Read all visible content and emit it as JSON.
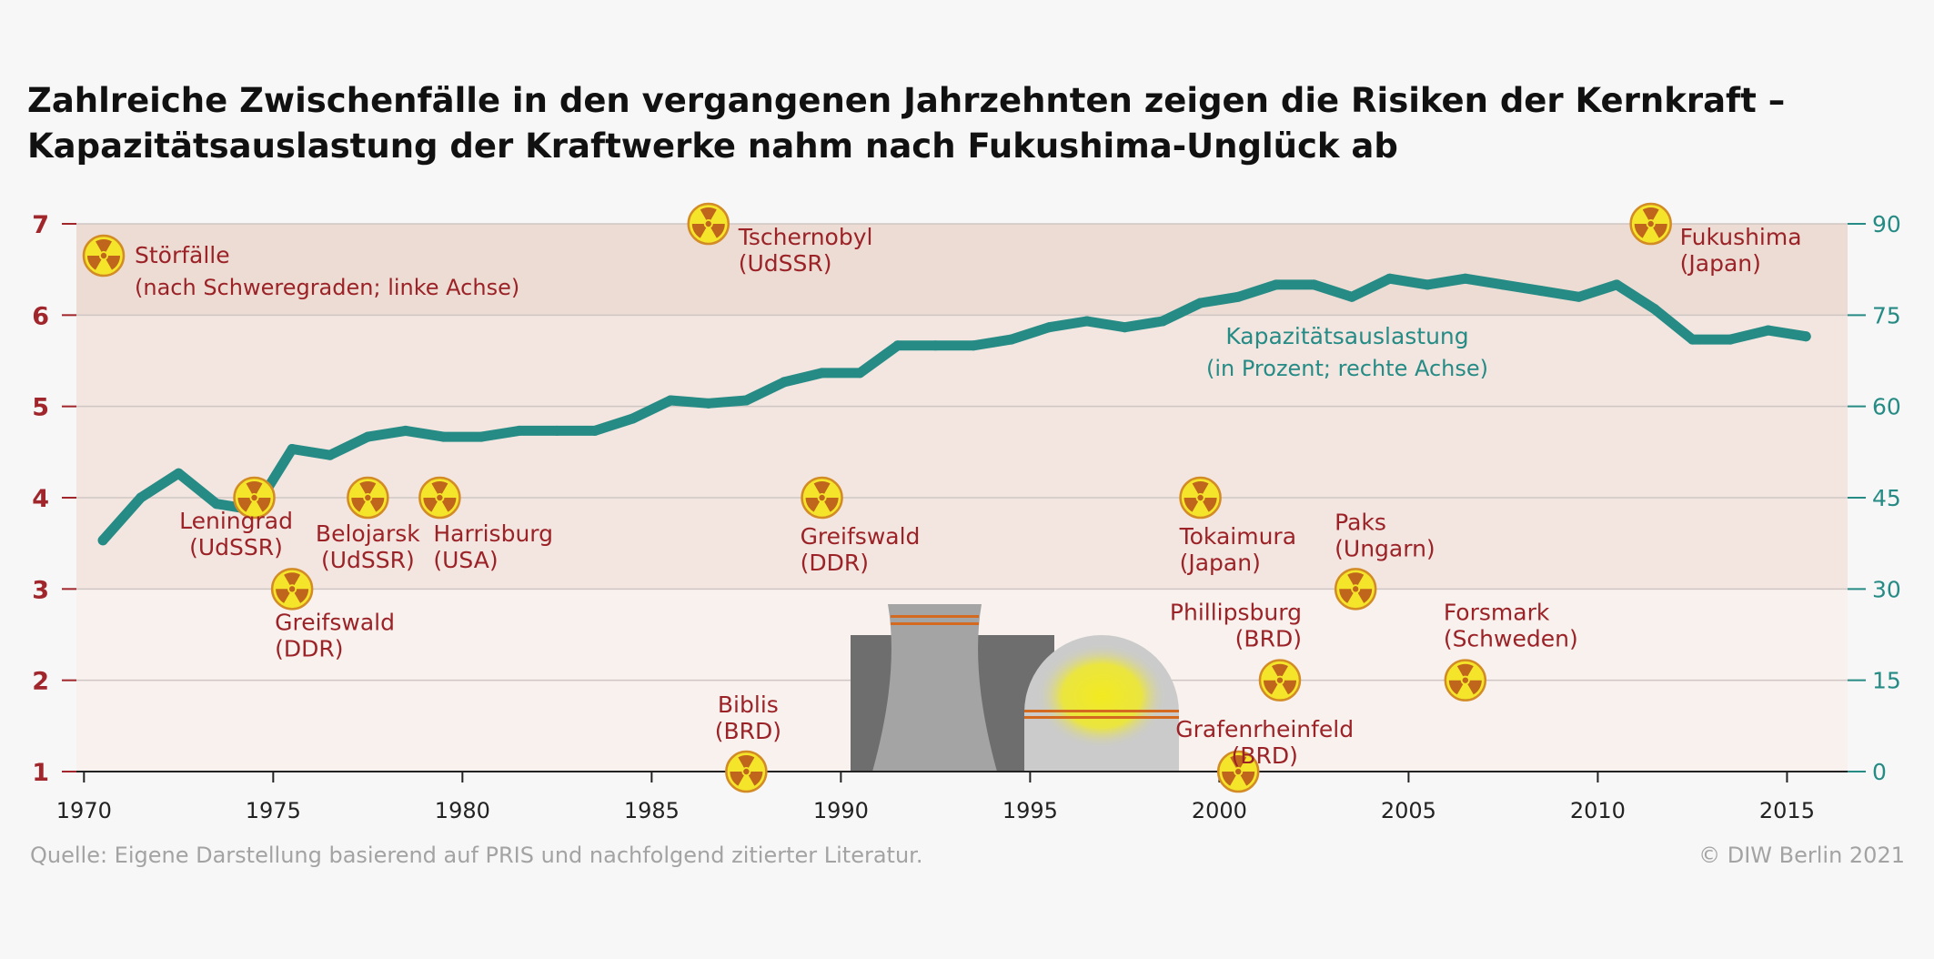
{
  "chart_data": {
    "type": "line",
    "title": "Zahlreiche Zwischenfälle in den vergangenen Jahrzehnten zeigen die Risiken der Kernkraft – Kapazitätsauslastung der Kraftwerke nahm nach Fukushima-Unglück ab",
    "x_ticks": [
      1970,
      1975,
      1980,
      1985,
      1990,
      1995,
      2000,
      2005,
      2010,
      2015
    ],
    "xlim": [
      1969.8,
      2016.6
    ],
    "left_axis": {
      "label": "Störfälle (nach Schweregraden)",
      "ylim": [
        1,
        7
      ],
      "ticks": [
        1,
        2,
        3,
        4,
        5,
        6,
        7
      ]
    },
    "right_axis": {
      "label": "Kapazitätsauslastung (in Prozent)",
      "ylim": [
        0,
        90
      ],
      "ticks": [
        0,
        15,
        30,
        45,
        60,
        75,
        90
      ]
    },
    "bands": [
      {
        "from": 1,
        "to": 3,
        "color": "#f8f1ee"
      },
      {
        "from": 3,
        "to": 6,
        "color": "#f3e6e1"
      },
      {
        "from": 6,
        "to": 7,
        "color": "#ecdcd4"
      }
    ],
    "series": [
      {
        "name": "Kapazitätsauslastung",
        "axis": "right",
        "color": "#268b85",
        "points": [
          [
            1970.5,
            38
          ],
          [
            1971.5,
            45
          ],
          [
            1972.5,
            49
          ],
          [
            1973.5,
            44
          ],
          [
            1974.5,
            43
          ],
          [
            1975.5,
            53
          ],
          [
            1976.5,
            52
          ],
          [
            1977.5,
            55
          ],
          [
            1978.5,
            56
          ],
          [
            1979.5,
            55
          ],
          [
            1980.5,
            55
          ],
          [
            1981.5,
            56
          ],
          [
            1982.5,
            56
          ],
          [
            1983.5,
            56
          ],
          [
            1984.5,
            58
          ],
          [
            1985.5,
            61
          ],
          [
            1986.5,
            60.5
          ],
          [
            1987.5,
            61
          ],
          [
            1988.5,
            64
          ],
          [
            1989.5,
            65.5
          ],
          [
            1990.5,
            65.5
          ],
          [
            1991.5,
            70
          ],
          [
            1992.5,
            70
          ],
          [
            1993.5,
            70
          ],
          [
            1994.5,
            71
          ],
          [
            1995.5,
            73
          ],
          [
            1996.5,
            74
          ],
          [
            1997.5,
            73
          ],
          [
            1998.5,
            74
          ],
          [
            1999.5,
            77
          ],
          [
            2000.5,
            78
          ],
          [
            2001.5,
            80
          ],
          [
            2002.5,
            80
          ],
          [
            2003.5,
            78
          ],
          [
            2004.5,
            81
          ],
          [
            2005.5,
            80
          ],
          [
            2006.5,
            81
          ],
          [
            2007.5,
            80
          ],
          [
            2008.5,
            79
          ],
          [
            2009.5,
            78
          ],
          [
            2010.5,
            80
          ],
          [
            2011.5,
            76
          ],
          [
            2012.5,
            71
          ],
          [
            2013.5,
            71
          ],
          [
            2014.5,
            72.5
          ],
          [
            2015.5,
            71.5
          ]
        ]
      }
    ],
    "incidents": [
      {
        "year": 1974.5,
        "level": 4,
        "label": [
          "Leningrad",
          "(UdSSR)"
        ]
      },
      {
        "year": 1975.5,
        "level": 3,
        "label": [
          "Greifswald",
          "(DDR)"
        ]
      },
      {
        "year": 1977.5,
        "level": 4,
        "label": [
          "Belojarsk",
          "(UdSSR)"
        ]
      },
      {
        "year": 1979.4,
        "level": 4,
        "label": [
          "Harrisburg",
          "(USA)"
        ]
      },
      {
        "year": 1986.5,
        "level": 7,
        "label": [
          "Tschernobyl",
          "(UdSSR)"
        ]
      },
      {
        "year": 1987.5,
        "level": 1,
        "label": [
          "Biblis",
          "(BRD)"
        ]
      },
      {
        "year": 1989.5,
        "level": 4,
        "label": [
          "Greifswald",
          "(DDR)"
        ]
      },
      {
        "year": 1999.5,
        "level": 4,
        "label": [
          "Tokaimura",
          "(Japan)"
        ]
      },
      {
        "year": 2000.5,
        "level": 1,
        "label": [
          "Grafenrheinfeld",
          "(BRD)"
        ]
      },
      {
        "year": 2001.6,
        "level": 2,
        "label": [
          "Phillipsburg",
          "(BRD)"
        ]
      },
      {
        "year": 2003.6,
        "level": 3,
        "label": [
          "Paks",
          "(Ungarn)"
        ]
      },
      {
        "year": 2006.5,
        "level": 2,
        "label": [
          "Forsmark",
          "(Schweden)"
        ]
      },
      {
        "year": 2011.4,
        "level": 7,
        "label": [
          "Fukushima",
          "(Japan)"
        ]
      }
    ],
    "annotations": {
      "incidents_legend": [
        "Störfälle",
        "(nach Schweregraden; linke Achse)"
      ],
      "capacity_legend": [
        "Kapazitätsauslastung",
        "(in Prozent; rechte Achse)"
      ]
    },
    "colors": {
      "left_axis": "#a0262c",
      "right_axis": "#268b85",
      "label": "#9b2226",
      "icon_fill": "#f5e52a",
      "icon_ring": "#d38b25",
      "icon_symbol": "#c0661c",
      "grid": "#cfc5c2"
    }
  },
  "footer": {
    "source": "Quelle: Eigene Darstellung basierend auf PRIS und nachfolgend zitierter Literatur.",
    "copyright": "© DIW Berlin 2021"
  }
}
